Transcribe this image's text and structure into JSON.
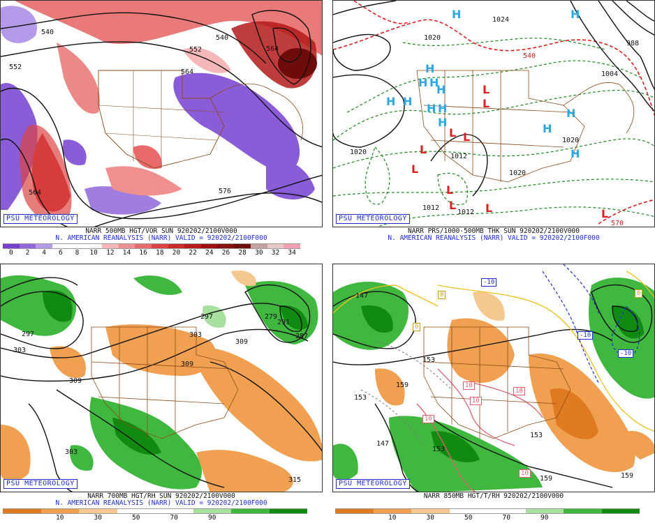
{
  "panels": [
    {
      "id": "p1",
      "logo": "PSU METEOROLOGY",
      "caption_line1": "NARR 500MB HGT/VOR SUN 920202/2100V000",
      "caption_line2": "N. AMERICAN REANALYSIS (NARR) VALID = 920202/2100F000",
      "map_labels": [
        "540",
        "552",
        "540",
        "552",
        "564",
        "564",
        "576",
        "564"
      ],
      "colorbar": {
        "colors": [
          "#7b3fd0",
          "#9466dc",
          "#b59aea",
          "#ffffff",
          "#ffffff",
          "#ffffff",
          "#f5b7b7",
          "#ef8f8f",
          "#e86a6a",
          "#dc4545",
          "#c92a2a",
          "#b41a1a",
          "#9e0f0f",
          "#851010",
          "#6e0c0c",
          "#c7a0a0",
          "#e8c8c8",
          "#f5a0b0"
        ],
        "ticks": [
          "0",
          "2",
          "4",
          "6",
          "8",
          "10",
          "12",
          "14",
          "16",
          "18",
          "20",
          "22",
          "24",
          "26",
          "28",
          "30",
          "32",
          "34"
        ]
      }
    },
    {
      "id": "p2",
      "logo": "PSU METEOROLOGY",
      "caption_line1": "NARR PRS/1000-500MB THK SUN 920202/2100V000",
      "caption_line2": "N. AMERICAN REANALYSIS (NARR) VALID = 920202/2100F000",
      "map_labels": [
        "1020",
        "1012",
        "1020",
        "1012",
        "1012",
        "1020",
        "1020",
        "1024",
        "1004",
        "988",
        "570",
        "540"
      ],
      "highs": [
        "H",
        "H",
        "H",
        "H",
        "H",
        "H",
        "H",
        "H",
        "H",
        "H",
        "H",
        "H",
        "H",
        "H"
      ],
      "lows": [
        "L",
        "L",
        "L",
        "L",
        "L",
        "L",
        "L",
        "L",
        "L",
        "L"
      ]
    },
    {
      "id": "p3",
      "logo": "PSU METEOROLOGY",
      "caption_line1": "NARR 700MB HGT/RH SUN 920202/2100V000",
      "caption_line2": "N. AMERICAN REANALYSIS (NARR) VALID = 920202/2100F000",
      "map_labels": [
        "297",
        "303",
        "309",
        "297",
        "303",
        "309",
        "279",
        "291",
        "287",
        "309",
        "303",
        "315"
      ],
      "colorbar": {
        "colors": [
          "#e07a20",
          "#f0a050",
          "#f5c890",
          "#ffffff",
          "#ffffff",
          "#a8e0a0",
          "#40b840",
          "#108a10"
        ],
        "ticks": [
          "10",
          "30",
          "50",
          "70",
          "90"
        ]
      }
    },
    {
      "id": "p4",
      "logo": "PSU METEOROLOGY",
      "caption_line1": "NARR 850MB HGT/T/RH 920202/2100V000",
      "caption_line2": "",
      "map_labels": [
        "147",
        "153",
        "159",
        "153",
        "153",
        "147",
        "153",
        "159",
        "159"
      ],
      "temp_boxes": [
        "-10",
        "-10",
        "-10",
        "10",
        "10",
        "10",
        "10",
        "10",
        "0",
        "0",
        "0"
      ],
      "colorbar": {
        "colors": [
          "#e07a20",
          "#f0a050",
          "#f5c890",
          "#ffffff",
          "#ffffff",
          "#a8e0a0",
          "#40b840",
          "#108a10"
        ],
        "ticks": [
          "10",
          "30",
          "50",
          "70",
          "90"
        ]
      }
    }
  ]
}
